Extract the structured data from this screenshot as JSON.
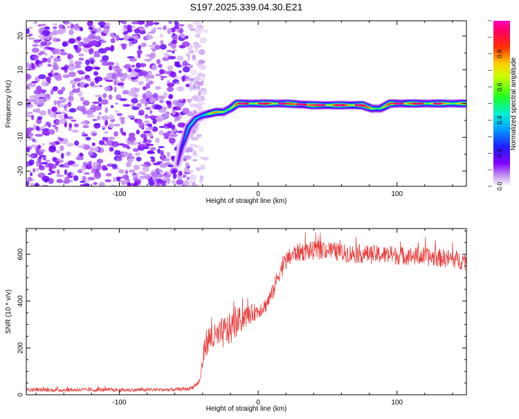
{
  "title": "S197.2025.339.04.30.E21",
  "chart_data": [
    {
      "type": "heatmap",
      "xlabel": "Height of straight line (km)",
      "ylabel": "Frequency (Hz)",
      "xlim": [
        -167,
        150
      ],
      "ylim": [
        -24.5,
        24.5
      ],
      "xticks": [
        -100,
        0,
        100
      ],
      "yticks": [
        -20,
        -10,
        0,
        10,
        20
      ],
      "colorbar": {
        "label": "Normalized spectral amplitude",
        "range": [
          0.0,
          1.0
        ],
        "ticks": [
          "0.0",
          "0.2",
          "0.4",
          "0.6",
          "0.8"
        ],
        "colormap": "rainbow (violet-blue-cyan-green-yellow-red-magenta)"
      },
      "noise_region": {
        "x_from": -167,
        "x_to": -50,
        "amplitude": "0.05-0.2"
      },
      "trace": {
        "x": [
          -58,
          -55,
          -50,
          -45,
          -40,
          -35,
          -30,
          -25,
          -20,
          -15,
          0,
          20,
          40,
          60,
          75,
          82,
          88,
          95,
          110,
          130,
          150
        ],
        "y": [
          -18,
          -13,
          -7,
          -4.5,
          -3.5,
          -3,
          -2.5,
          -2.5,
          -1.5,
          0,
          0,
          0,
          -0.5,
          -0.5,
          -0.5,
          -1.5,
          -1.5,
          0,
          0,
          0,
          0
        ],
        "amplitude": [
          0.2,
          0.3,
          0.4,
          0.5,
          0.6,
          0.7,
          0.75,
          0.8,
          0.8,
          0.85,
          0.9,
          0.9,
          0.95,
          1.0,
          1.0,
          0.85,
          0.7,
          0.9,
          0.9,
          0.85,
          0.8
        ]
      }
    },
    {
      "type": "line",
      "xlabel": "Height of straight line (km)",
      "ylabel": "SNR (10 * v/v)",
      "xlim": [
        -167,
        150
      ],
      "ylim": [
        0,
        710
      ],
      "xticks": [
        -100,
        0,
        100
      ],
      "yticks": [
        0,
        200,
        400,
        600
      ],
      "color": "#e8403f",
      "series": [
        {
          "name": "SNR",
          "x": [
            -167,
            -150,
            -120,
            -100,
            -80,
            -60,
            -50,
            -45,
            -42,
            -38,
            -35,
            -30,
            -25,
            -20,
            -15,
            -10,
            -5,
            0,
            5,
            10,
            15,
            20,
            25,
            30,
            40,
            50,
            60,
            80,
            100,
            120,
            140,
            150
          ],
          "y": [
            22,
            20,
            21,
            20,
            21,
            22,
            25,
            40,
            60,
            220,
            240,
            245,
            265,
            280,
            310,
            330,
            345,
            360,
            380,
            430,
            520,
            570,
            600,
            610,
            615,
            620,
            605,
            600,
            595,
            590,
            580,
            570
          ],
          "noise": [
            8,
            8,
            8,
            8,
            8,
            8,
            8,
            10,
            15,
            60,
            60,
            60,
            70,
            70,
            60,
            50,
            40,
            35,
            35,
            35,
            40,
            40,
            40,
            40,
            40,
            40,
            40,
            40,
            40,
            40,
            40,
            40
          ]
        }
      ]
    }
  ]
}
